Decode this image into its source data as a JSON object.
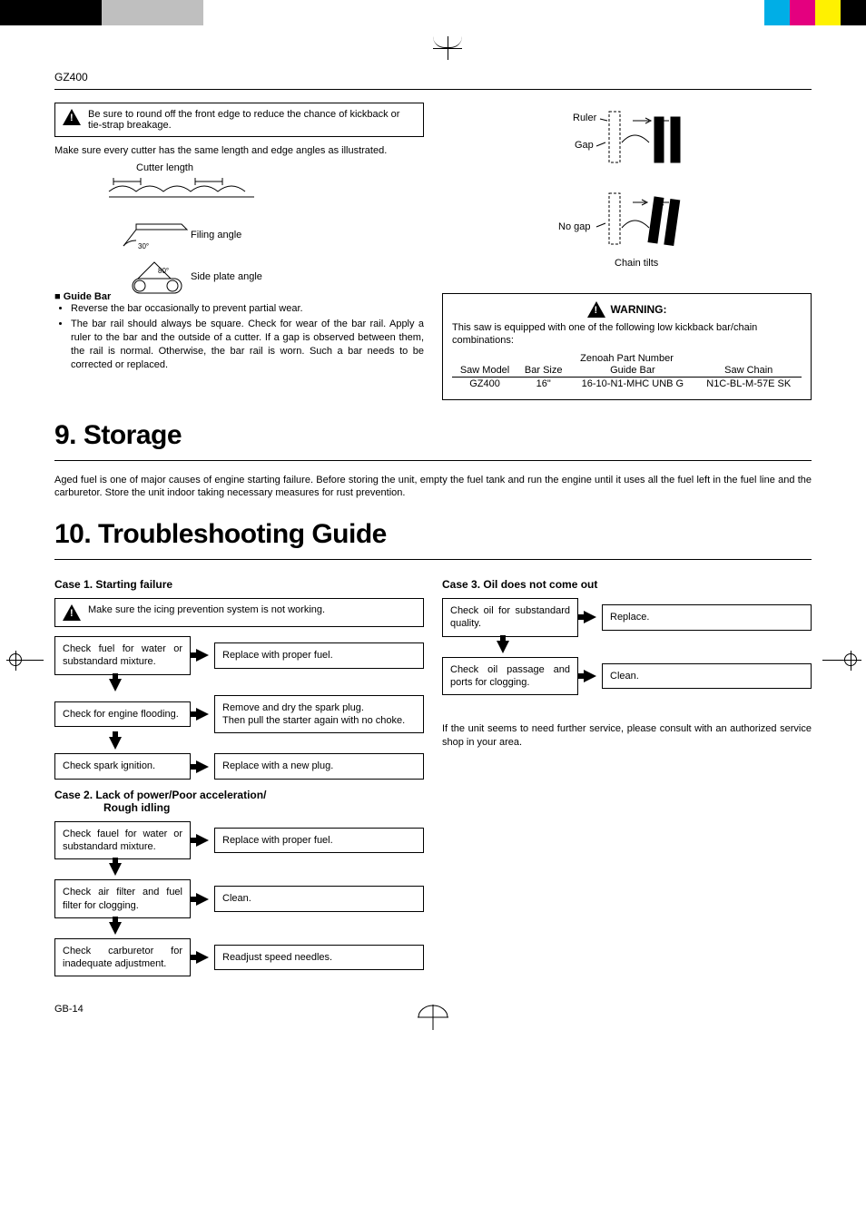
{
  "header": {
    "model": "GZ400",
    "swatches_left": [
      "#000000",
      "#000000",
      "#000000",
      "#000000",
      "#bfbfbf",
      "#bfbfbf",
      "#bfbfbf",
      "#bfbfbf"
    ],
    "swatches_right": [
      "#00aee6",
      "#e4007f",
      "#fff100",
      "#000000"
    ]
  },
  "left_col": {
    "warn1": "Be sure to round off the front edge to reduce the chance of kickback or tie-strap breakage.",
    "para1": "Make sure every cutter has the same length and edge angles as illustrated.",
    "fig_cutter": "Cutter length",
    "fig_filing": "Filing angle",
    "fig_filing_deg": "30°",
    "fig_side": "Side plate angle",
    "fig_side_deg": "80°",
    "guide_bar_head": "■ Guide Bar",
    "bullets": [
      "Reverse the bar occasionally to prevent partial wear.",
      "The bar rail should always be square. Check for wear of the bar rail. Apply a ruler to the bar and the outside of a cutter. If a gap is observed between them, the rail is normal. Otherwise, the bar rail is worn. Such a bar needs to be corrected or replaced."
    ]
  },
  "right_col": {
    "labels": {
      "ruler": "Ruler",
      "gap": "Gap",
      "nogap": "No gap",
      "tilts": "Chain tilts"
    },
    "warn_head": "WARNING:",
    "warn_text": "This saw is equipped with one of the following low kickback bar/chain combinations:",
    "table_supertitle": "Zenoah Part Number",
    "table": {
      "cols": [
        "Saw Model",
        "Bar Size",
        "Guide Bar",
        "Saw Chain"
      ],
      "rows": [
        [
          "GZ400",
          "16\"",
          "16-10-N1-MHC UNB G",
          "N1C-BL-M-57E SK"
        ]
      ]
    }
  },
  "storage": {
    "head": "9. Storage",
    "text": "Aged fuel is one of major causes of engine starting failure. Before storing the unit, empty the fuel tank and run the engine until it uses all the fuel left in the fuel line and the carburetor. Store the unit indoor taking necessary measures for rust prevention."
  },
  "trouble": {
    "head": "10. Troubleshooting Guide",
    "case1": {
      "title": "Case 1.  Starting failure",
      "icing": "Make sure the icing prevention system is not working.",
      "steps": [
        {
          "l": "Check fuel for water or substandard mixture.",
          "r": "Replace with proper fuel."
        },
        {
          "l": "Check for engine flooding.",
          "r": "Remove and dry the spark plug.\nThen pull the starter again with no choke."
        },
        {
          "l": "Check spark ignition.",
          "r": "Replace with a new plug."
        }
      ]
    },
    "case2": {
      "title": "Case 2.  Lack of power/Poor acceleration/",
      "title2": "Rough idling",
      "steps": [
        {
          "l": "Check fauel for water or substandard mixture.",
          "r": "Replace with proper fuel."
        },
        {
          "l": "Check air filter and fuel filter for clogging.",
          "r": "Clean."
        },
        {
          "l": "Check carburetor for inadequate adjustment.",
          "r": "Readjust speed needles."
        }
      ]
    },
    "case3": {
      "title": "Case 3.  Oil does not come out",
      "steps": [
        {
          "l": "Check oil for substandard quality.",
          "r": "Replace."
        },
        {
          "l": "Check oil passage and ports for clogging.",
          "r": "Clean."
        }
      ],
      "tail": "If the unit seems to need further service, please consult with an authorized service shop in your area."
    }
  },
  "footer": {
    "page": "GB-14"
  }
}
